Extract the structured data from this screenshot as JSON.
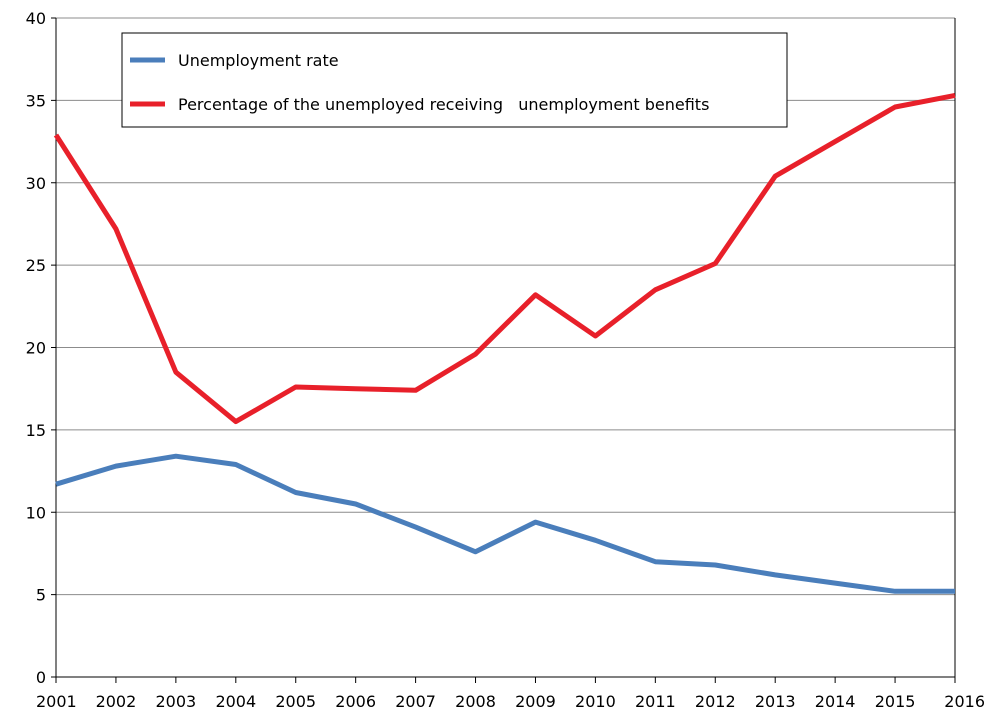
{
  "chart_data": {
    "type": "line",
    "x": [
      "2001",
      "2002",
      "2003",
      "2004",
      "2005",
      "2006",
      "2007",
      "2008",
      "2009",
      "2010",
      "2011",
      "2012",
      "2013",
      "2014",
      "2015",
      "2016"
    ],
    "ylim": [
      0,
      40
    ],
    "yticks": [
      0,
      5,
      10,
      15,
      20,
      25,
      30,
      35,
      40
    ],
    "grid": true,
    "legend_position": "top-left",
    "series": [
      {
        "name": "Unemployment rate",
        "color": "#4a7ebb",
        "values": [
          11.7,
          12.8,
          13.4,
          12.9,
          11.2,
          10.5,
          9.1,
          7.6,
          9.4,
          8.3,
          7.0,
          6.8,
          6.2,
          5.7,
          5.2,
          5.2
        ]
      },
      {
        "name": "Percentage of the unemployed receiving   unemployment benefits",
        "color": "#e8202a",
        "values": [
          32.9,
          27.2,
          18.5,
          15.5,
          17.6,
          17.5,
          17.4,
          19.6,
          23.2,
          20.7,
          23.5,
          25.1,
          30.4,
          32.5,
          34.6,
          35.3
        ]
      }
    ]
  }
}
